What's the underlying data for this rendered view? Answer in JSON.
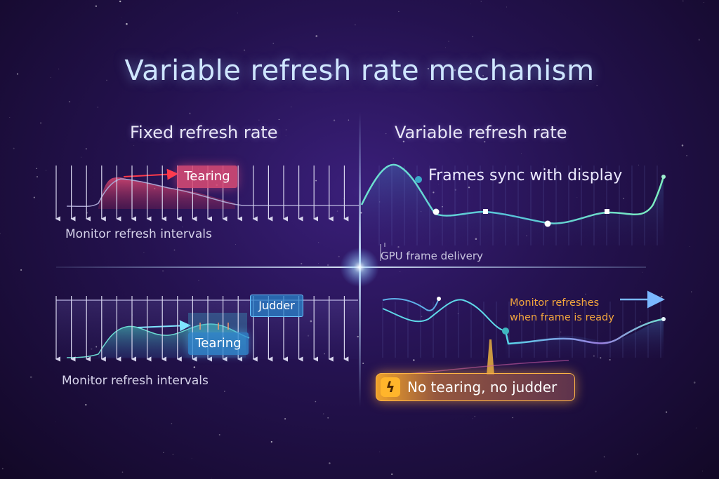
{
  "title": "Variable refresh rate mechanism",
  "left_panel": {
    "heading": "Fixed refresh rate",
    "top": {
      "tag": "Tearing",
      "caption": "Monitor refresh intervals"
    },
    "bottom": {
      "tag_judder": "Judder",
      "tag_tearing": "Tearing",
      "caption": "Monitor refresh intervals"
    }
  },
  "right_panel": {
    "heading": "Variable refresh rate",
    "top": {
      "annotation": "Frames sync with display",
      "caption": "GPU frame delivery"
    },
    "bottom": {
      "annotation_line1": "Monitor refreshes",
      "annotation_line2": "when frame is ready"
    }
  },
  "badge": {
    "icon": "lightning-icon",
    "glyph": "ϟ",
    "text": "No tearing, no judder"
  },
  "colors": {
    "background": "#24124f",
    "title": "#cfe6ff",
    "tearing_red": "#d64a74",
    "judder_blue": "#2882c8",
    "curve_teal": "#5fe0c8",
    "curve_purple": "#8a7bd8",
    "accent_orange": "#f3a63d"
  }
}
